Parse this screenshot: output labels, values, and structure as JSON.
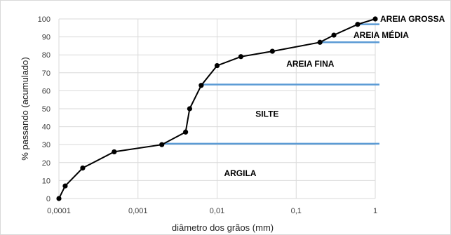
{
  "chart_data": {
    "type": "line",
    "xlabel": "diâmetro dos grãos (mm)",
    "ylabel": "% passando (acumulado)",
    "x_scale": "log",
    "xlim": [
      0.0001,
      1
    ],
    "ylim": [
      0,
      100
    ],
    "grid": true,
    "x_tick_labels": [
      "0,0001",
      "0,001",
      "0,01",
      "0,1",
      "1"
    ],
    "y_tick_labels": [
      "0",
      "10",
      "20",
      "30",
      "40",
      "50",
      "60",
      "70",
      "80",
      "90",
      "100"
    ],
    "series": [
      {
        "color": "#000000",
        "x": [
          0.0001,
          0.00012,
          0.0002,
          0.0005,
          0.002,
          0.004,
          0.0045,
          0.0063,
          0.01,
          0.02,
          0.05,
          0.2,
          0.3,
          0.6,
          1
        ],
        "y": [
          0,
          7,
          17,
          26,
          30,
          37,
          50,
          63,
          74,
          79,
          82,
          87,
          91,
          97,
          100
        ]
      }
    ],
    "boundaries": [
      {
        "x_start": 0.002,
        "y": 30.5
      },
      {
        "x_start": 0.0063,
        "y": 63.5
      },
      {
        "x_start": 0.2,
        "y": 87
      },
      {
        "x_start": 0.6,
        "y": 97
      }
    ],
    "boundary_color": "#5b9bd5",
    "zones": [
      {
        "label": "ARGILA",
        "x": 0.02,
        "y": 14
      },
      {
        "label": "SILTE",
        "x": 0.05,
        "y": 47
      },
      {
        "label": "AREIA FINA",
        "x": 0.2,
        "y": 75
      },
      {
        "label": "AREIA MÉDIA",
        "x": 1,
        "y": 91
      },
      {
        "label": "AREIA GROSSA",
        "x": 1,
        "y": 100
      }
    ]
  }
}
